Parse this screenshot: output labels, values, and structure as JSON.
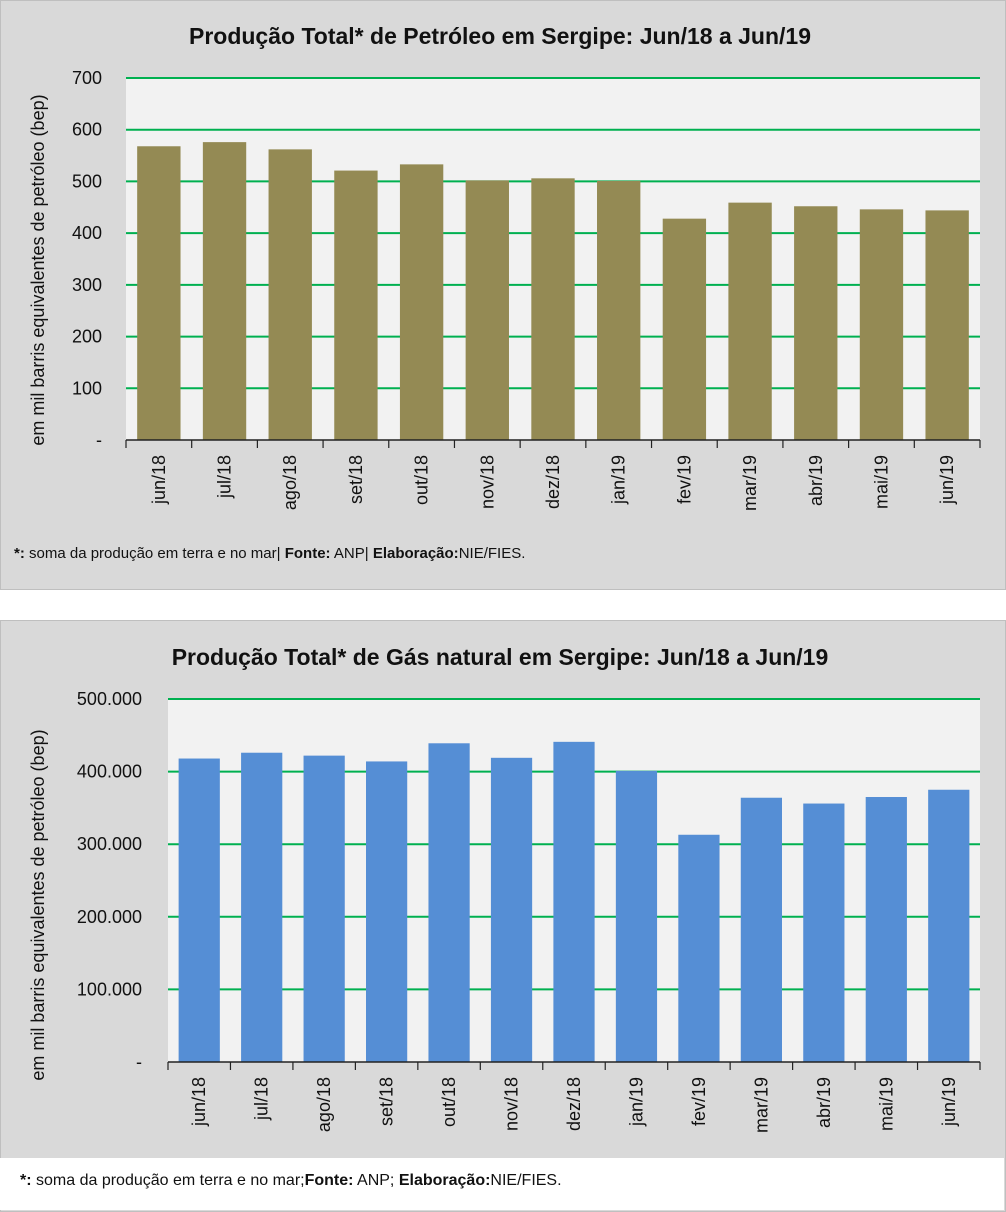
{
  "chart_data": [
    {
      "type": "bar",
      "title": "Produção Total* de Petróleo em Sergipe:  Jun/18 a Jun/19",
      "ylabel": "em mil barris equivalentes de petróleo (bep)",
      "xlabel": "",
      "categories": [
        "jun/18",
        "jul/18",
        "ago/18",
        "set/18",
        "out/18",
        "nov/18",
        "dez/18",
        "jan/19",
        "fev/19",
        "mar/19",
        "abr/19",
        "mai/19",
        "jun/19"
      ],
      "values": [
        568,
        576,
        562,
        521,
        533,
        502,
        506,
        501,
        428,
        459,
        452,
        446,
        444
      ],
      "ylim": [
        0,
        700
      ],
      "yticks": [
        "-",
        "100",
        "200",
        "300",
        "400",
        "500",
        "600",
        "700"
      ],
      "grid": true,
      "bar_color": "#948a54",
      "grid_color": "#00b050"
    },
    {
      "type": "bar",
      "title": "Produção Total* de Gás natural em Sergipe: Jun/18 a Jun/19",
      "ylabel": "em mil barris equivalentes de petróleo (bep)",
      "xlabel": "",
      "categories": [
        "jun/18",
        "jul/18",
        "ago/18",
        "set/18",
        "out/18",
        "nov/18",
        "dez/18",
        "jan/19",
        "fev/19",
        "mar/19",
        "abr/19",
        "mai/19",
        "jun/19"
      ],
      "values": [
        418000,
        426000,
        422000,
        414000,
        439000,
        419000,
        441000,
        401000,
        313000,
        364000,
        356000,
        365000,
        375000
      ],
      "ylim": [
        0,
        500000
      ],
      "yticks": [
        "-",
        "100.000",
        "200.000",
        "300.000",
        "400.000",
        "500.000"
      ],
      "grid": true,
      "bar_color": "#558ed5",
      "grid_color": "#00b050"
    }
  ],
  "notes": {
    "chart1": {
      "marker": "*:",
      "text1": "soma da produção em terra e no mar|",
      "fonte_label": "Fonte:",
      "fonte": "ANP|",
      "elab_label": "Elaboração:",
      "elab": "NIE/FIES."
    },
    "chart2": {
      "marker": "*:",
      "text1": "soma da produção em terra e no mar;",
      "fonte_label": "Fonte:",
      "fonte": "ANP;",
      "elab_label": "Elaboração:",
      "elab": "NIE/FIES."
    }
  }
}
